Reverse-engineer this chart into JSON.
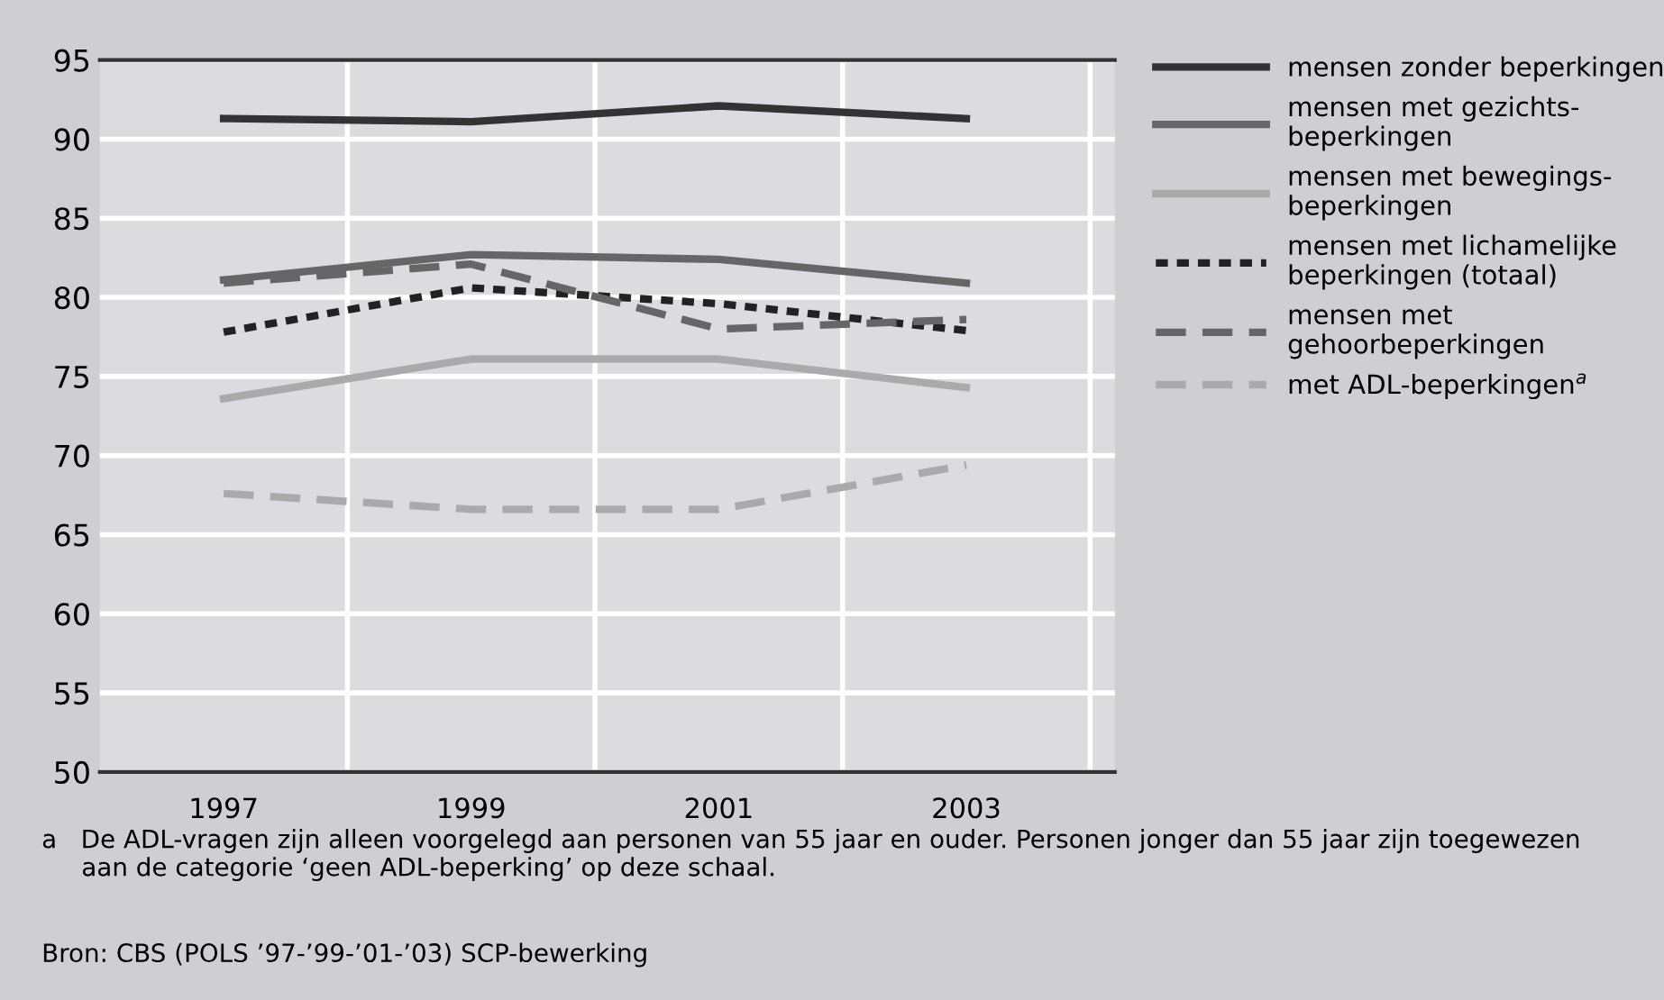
{
  "chart_data": {
    "type": "line",
    "categories": [
      "1997",
      "1999",
      "2001",
      "2003"
    ],
    "series": [
      {
        "name": "mensen zonder beperkingen",
        "color": "#333333",
        "line_style": "solid",
        "values": [
          91.3,
          91.1,
          92.1,
          91.3
        ]
      },
      {
        "name": "mensen met gezichts-\nbeperkingen",
        "color": "#666666",
        "line_style": "solid",
        "values": [
          81.1,
          82.7,
          82.4,
          80.9
        ]
      },
      {
        "name": "mensen met bewegings-\nbeperkingen",
        "color": "#aaaaaa",
        "line_style": "solid",
        "values": [
          73.6,
          76.1,
          76.1,
          74.3
        ]
      },
      {
        "name": "mensen met lichamelijke\nbeperkingen (totaal)",
        "color": "#222222",
        "line_style": "dotted",
        "values": [
          77.8,
          80.6,
          79.6,
          77.9
        ]
      },
      {
        "name": "mensen met\ngehoorbeperkingen",
        "color": "#666666",
        "line_style": "dashed",
        "values": [
          80.9,
          82.1,
          78.0,
          78.6
        ]
      },
      {
        "name": "met ADL-beperkingen$^{a}$",
        "color": "#aaaaaa",
        "line_style": "dashed",
        "values": [
          67.6,
          66.6,
          66.6,
          69.4
        ]
      }
    ],
    "ylim": [
      50,
      95
    ],
    "yticks": [
      50,
      55,
      60,
      65,
      70,
      75,
      80,
      85,
      90,
      95
    ],
    "grid": true,
    "legend": "right",
    "marker": "none",
    "annotations": [
      "a   De ADL-vragen zijn alleen voorgelegd aan personen van 55 jaar en ouder. Personen jonger dan 55 jaar zijn toegewezen\n     aan de categorie ‘geen ADL-beperking’ op deze schaal.",
      "Bron: CBS (POLS ’97-’99-’01-’03) SCP-bewerking"
    ]
  }
}
